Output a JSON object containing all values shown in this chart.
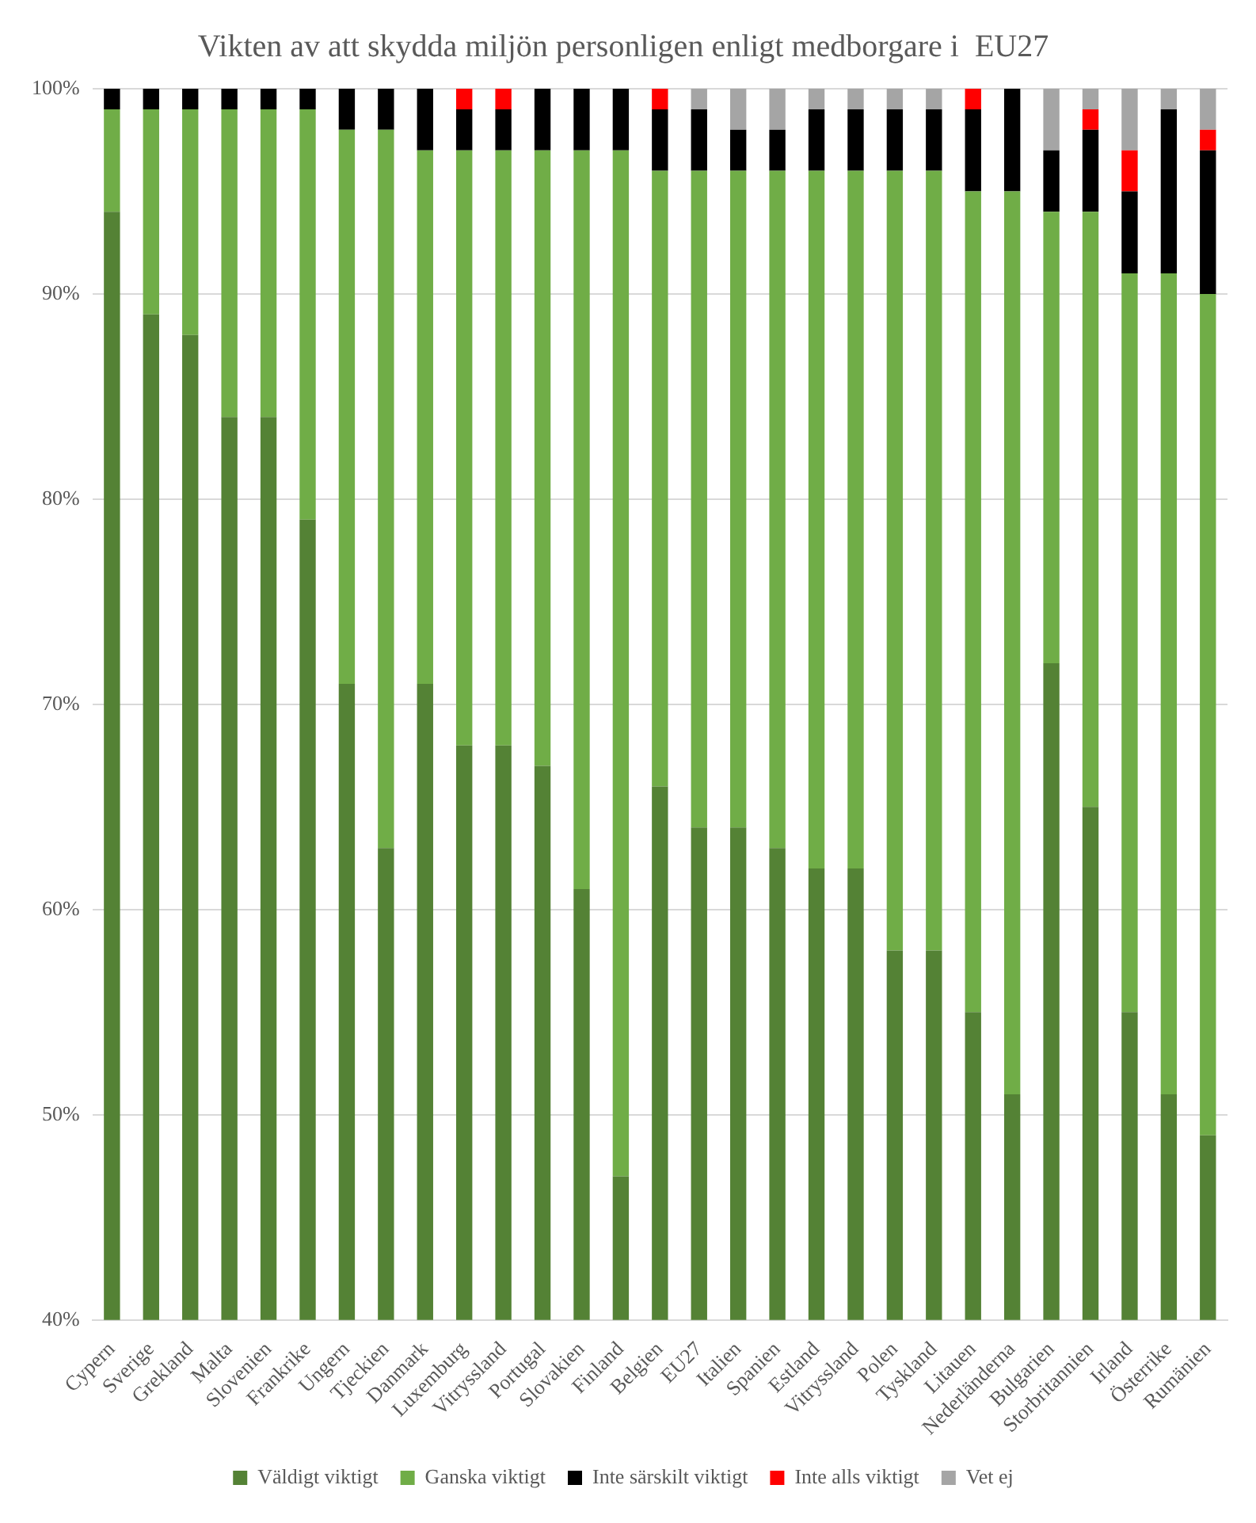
{
  "chart_data": {
    "type": "bar",
    "title": "Vikten av att skydda miljön personligen enligt medborgare i  EU27",
    "stacked": true,
    "categories": [
      "Cypern",
      "Sverige",
      "Grekland",
      "Malta",
      "Slovenien",
      "Frankrike",
      "Ungern",
      "Tjeckien",
      "Danmark",
      "Luxemburg",
      "Vitryssland",
      "Portugal",
      "Slovakien",
      "Finland",
      "Belgien",
      "EU27",
      "Italien",
      "Spanien",
      "Estland",
      "Vitryssland",
      "Polen",
      "Tyskland",
      "Litauen",
      "Nederländerna",
      "Bulgarien",
      "Storbritannien",
      "Irland",
      "Österrike",
      "Rumänien"
    ],
    "series": [
      {
        "name": "Väldigt viktigt",
        "color": "#548235",
        "values": [
          94,
          89,
          88,
          84,
          84,
          79,
          71,
          63,
          71,
          68,
          68,
          67,
          61,
          47,
          66,
          64,
          64,
          63,
          62,
          62,
          58,
          58,
          55,
          51,
          72,
          65,
          55,
          51,
          49
        ]
      },
      {
        "name": "Ganska viktigt",
        "color": "#70ad47",
        "base": [
          94,
          89,
          88,
          84,
          84,
          79,
          71,
          63,
          71,
          68,
          68,
          67,
          61,
          47,
          66,
          64,
          64,
          63,
          62,
          62,
          58,
          58,
          55,
          51,
          72,
          65,
          55,
          51,
          49
        ],
        "values": [
          5,
          10,
          11,
          15,
          15,
          20,
          27,
          35,
          26,
          29,
          29,
          30,
          36,
          50,
          30,
          32,
          32,
          33,
          34,
          34,
          38,
          38,
          40,
          44,
          22,
          29,
          36,
          40,
          41
        ]
      },
      {
        "name": "Inte särskilt viktigt",
        "color": "#000000",
        "base": [
          99,
          99,
          99,
          99,
          99,
          99,
          98,
          98,
          97,
          97,
          97,
          97,
          97,
          97,
          96,
          96,
          96,
          96,
          96,
          96,
          96,
          96,
          95,
          95,
          94,
          94,
          91,
          91,
          90
        ],
        "values": [
          1,
          1,
          1,
          1,
          1,
          1,
          2,
          2,
          3,
          2,
          2,
          3,
          3,
          3,
          3,
          3,
          2,
          2,
          3,
          3,
          3,
          3,
          4,
          5,
          3,
          4,
          4,
          8,
          7
        ]
      },
      {
        "name": "Inte alls viktigt",
        "color": "#ff0000",
        "base": [
          null,
          null,
          null,
          null,
          null,
          null,
          null,
          null,
          null,
          99,
          99,
          null,
          null,
          null,
          99,
          null,
          null,
          null,
          null,
          null,
          null,
          null,
          99,
          null,
          null,
          98,
          95,
          null,
          97
        ],
        "values": [
          null,
          null,
          null,
          null,
          null,
          null,
          null,
          null,
          null,
          1,
          1,
          null,
          null,
          null,
          1,
          null,
          null,
          null,
          null,
          null,
          null,
          null,
          1,
          null,
          null,
          1,
          2,
          null,
          1
        ]
      },
      {
        "name": "Vet ej",
        "color": "#a5a5a5",
        "base": [
          null,
          null,
          null,
          null,
          null,
          null,
          null,
          null,
          null,
          null,
          null,
          null,
          null,
          null,
          null,
          99,
          98,
          98,
          99,
          99,
          99,
          99,
          null,
          null,
          97,
          99,
          97,
          99,
          98
        ],
        "values": [
          null,
          null,
          null,
          null,
          null,
          null,
          null,
          null,
          null,
          null,
          null,
          null,
          null,
          null,
          null,
          1,
          2,
          2,
          1,
          1,
          1,
          1,
          null,
          null,
          3,
          1,
          3,
          1,
          2
        ]
      }
    ],
    "ylim": [
      40,
      100
    ],
    "yticks": [
      {
        "value": 40,
        "label": "40%"
      },
      {
        "value": 50,
        "label": "50%"
      },
      {
        "value": 60,
        "label": "60%"
      },
      {
        "value": 70,
        "label": "70%"
      },
      {
        "value": 80,
        "label": "80%"
      },
      {
        "value": 90,
        "label": "90%"
      },
      {
        "value": 100,
        "label": "100%"
      }
    ],
    "grid": "y",
    "legend": "bottom"
  }
}
